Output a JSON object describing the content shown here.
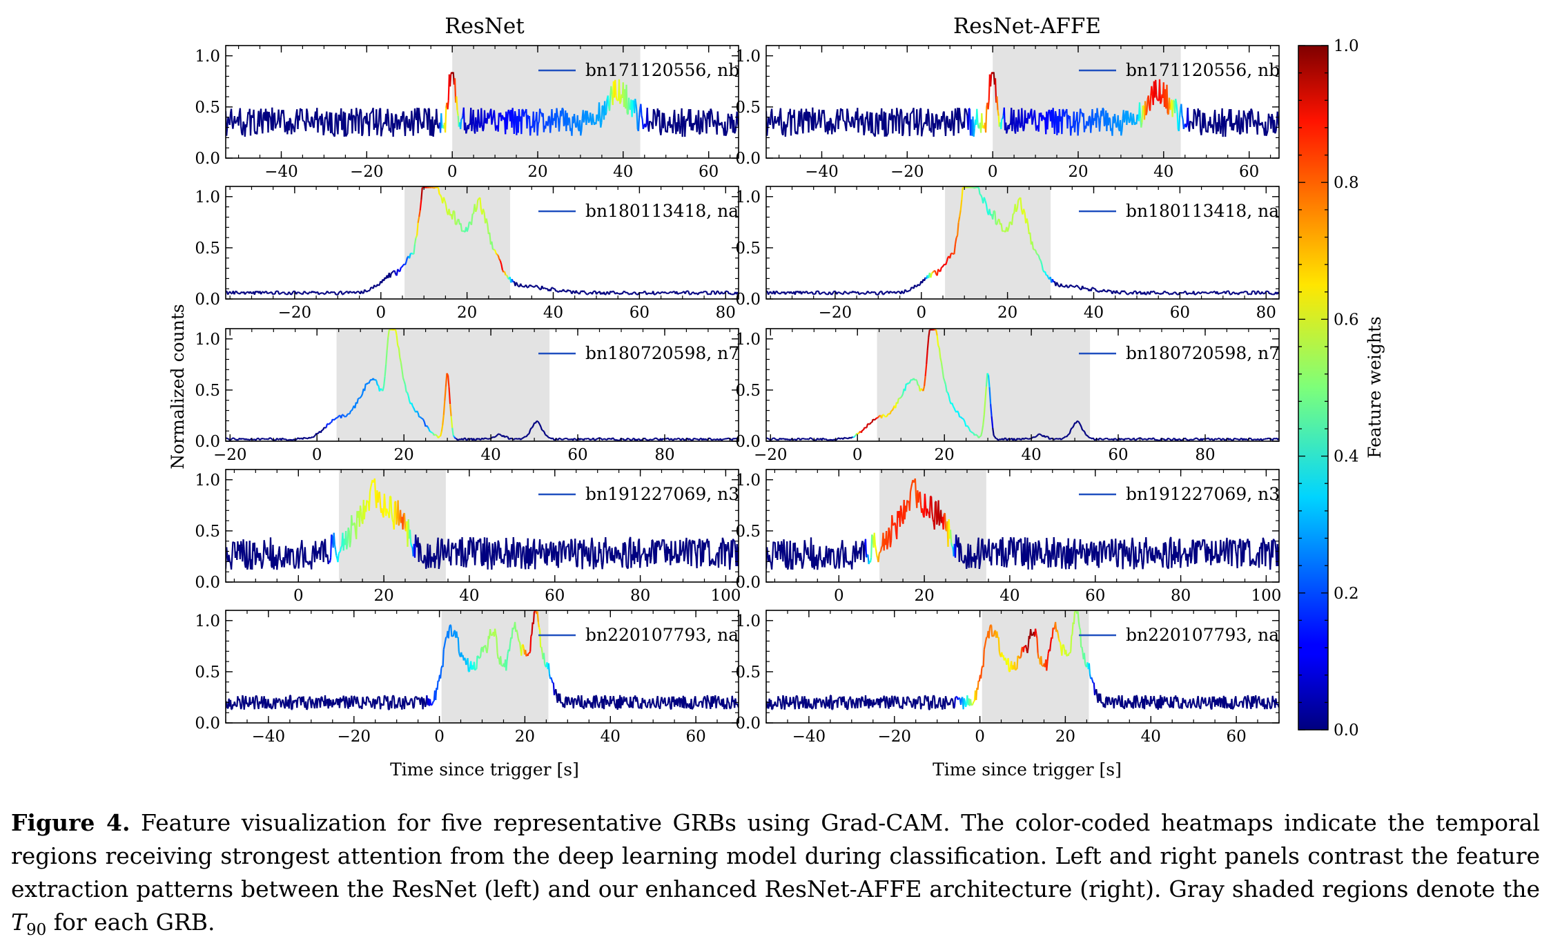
{
  "figure": {
    "left_title": "ResNet",
    "right_title": "ResNet-AFFE",
    "ylabel": "Normalized counts",
    "xlabel": "Time since trigger [s]",
    "colorbar": {
      "label": "Feature weights",
      "range": [
        0.0,
        1.0
      ],
      "ticks": [
        "0.0",
        "0.2",
        "0.4",
        "0.6",
        "0.8",
        "1.0"
      ]
    }
  },
  "caption": {
    "label": "Figure 4.",
    "text_before": "Feature visualization for five representative GRBs using Grad-CAM. The color-coded heatmaps indicate the temporal regions receiving strongest attention from the deep learning model during classification. Left and right panels contrast the feature extraction patterns between the ResNet (left) and our enhanced ResNet-AFFE architecture (right). Gray shaded regions denote the",
    "t_symbol": "T",
    "t_sub": "90",
    "text_after": "for each GRB."
  },
  "chart_data": [
    {
      "type": "line",
      "panel": "ResNet",
      "row": 1,
      "legend": "bn171120556, nb",
      "xlim": [
        -53,
        67
      ],
      "ylim": [
        0,
        1.1
      ],
      "xticks": [
        -40,
        -20,
        0,
        20,
        40,
        60
      ],
      "yticks": [
        0.0,
        0.5,
        1.0
      ],
      "t90": [
        0,
        44
      ],
      "kind": "noisy",
      "baseline": 0.35,
      "noise": 0.09,
      "pulses": [
        [
          0,
          0.62,
          0.7
        ],
        [
          39,
          0.3,
          2.5
        ]
      ],
      "heat": [
        [
          -3,
          0.1
        ],
        [
          -1,
          0.85
        ],
        [
          0.3,
          1.0
        ],
        [
          1.8,
          0.35
        ],
        [
          3,
          0.05
        ],
        [
          36,
          0.3
        ],
        [
          38,
          0.65
        ],
        [
          41,
          0.5
        ],
        [
          44,
          0.2
        ],
        [
          46,
          0.05
        ]
      ]
    },
    {
      "type": "line",
      "panel": "ResNet-AFFE",
      "row": 1,
      "legend": "bn171120556, nb",
      "xlim": [
        -53,
        67
      ],
      "ylim": [
        0,
        1.1
      ],
      "xticks": [
        -40,
        -20,
        0,
        20,
        40,
        60
      ],
      "yticks": [
        0.0,
        0.5,
        1.0
      ],
      "t90": [
        0,
        44
      ],
      "kind": "noisy",
      "baseline": 0.35,
      "noise": 0.09,
      "pulses": [
        [
          0,
          0.62,
          0.7
        ],
        [
          39,
          0.3,
          2.5
        ]
      ],
      "heat": [
        [
          -6,
          0.05
        ],
        [
          -3,
          0.5
        ],
        [
          -0.5,
          0.9
        ],
        [
          0.5,
          1.0
        ],
        [
          2,
          0.4
        ],
        [
          3,
          0.05
        ],
        [
          34,
          0.3
        ],
        [
          36,
          0.8
        ],
        [
          38,
          0.9
        ],
        [
          41,
          0.8
        ],
        [
          43,
          0.4
        ],
        [
          46,
          0.05
        ]
      ]
    },
    {
      "type": "line",
      "panel": "ResNet",
      "row": 2,
      "legend": "bn180113418, na",
      "xlim": [
        -36,
        83
      ],
      "ylim": [
        0,
        1.1
      ],
      "xticks": [
        -20,
        0,
        20,
        40,
        60,
        80
      ],
      "yticks": [
        0.0,
        0.5,
        1.0
      ],
      "t90": [
        5.5,
        30
      ],
      "kind": "smooth",
      "baseline": 0.06,
      "noise": 0.012,
      "pulses": [
        [
          3,
          0.18,
          3
        ],
        [
          7,
          0.25,
          1.5
        ],
        [
          10,
          0.88,
          1.2
        ],
        [
          12.5,
          0.72,
          1.5
        ],
        [
          15,
          0.5,
          2
        ],
        [
          18,
          0.48,
          2
        ],
        [
          22.5,
          0.72,
          1.8
        ],
        [
          26,
          0.32,
          2.5
        ],
        [
          34,
          0.06,
          5
        ]
      ],
      "heat": [
        [
          3,
          0.05
        ],
        [
          6,
          0.2
        ],
        [
          8,
          0.5
        ],
        [
          9.5,
          0.95
        ],
        [
          11,
          0.8
        ],
        [
          14,
          0.6
        ],
        [
          17,
          0.55
        ],
        [
          20,
          0.45
        ],
        [
          23,
          0.6
        ],
        [
          26,
          0.5
        ],
        [
          28,
          0.9
        ],
        [
          29.5,
          0.5
        ],
        [
          31,
          0.1
        ]
      ]
    },
    {
      "type": "line",
      "panel": "ResNet-AFFE",
      "row": 2,
      "legend": "bn180113418, na",
      "xlim": [
        -36,
        83
      ],
      "ylim": [
        0,
        1.1
      ],
      "xticks": [
        -20,
        0,
        20,
        40,
        60,
        80
      ],
      "yticks": [
        0.0,
        0.5,
        1.0
      ],
      "t90": [
        5.5,
        30
      ],
      "kind": "smooth",
      "baseline": 0.06,
      "noise": 0.012,
      "pulses": [
        [
          3,
          0.18,
          3
        ],
        [
          7,
          0.25,
          1.5
        ],
        [
          10,
          0.88,
          1.2
        ],
        [
          12.5,
          0.72,
          1.5
        ],
        [
          15,
          0.5,
          2
        ],
        [
          18,
          0.48,
          2
        ],
        [
          22.5,
          0.72,
          1.8
        ],
        [
          26,
          0.32,
          2.5
        ],
        [
          34,
          0.06,
          5
        ]
      ],
      "heat": [
        [
          1,
          0.2
        ],
        [
          3,
          0.8
        ],
        [
          5,
          0.9
        ],
        [
          8,
          0.8
        ],
        [
          10,
          0.6
        ],
        [
          13,
          0.45
        ],
        [
          15.5,
          0.4
        ],
        [
          18,
          0.55
        ],
        [
          21,
          0.55
        ],
        [
          24,
          0.6
        ],
        [
          27,
          0.5
        ],
        [
          30,
          0.3
        ],
        [
          31,
          0.05
        ]
      ]
    },
    {
      "type": "line",
      "panel": "ResNet",
      "row": 3,
      "legend": "bn180720598, n7",
      "xlim": [
        -21,
        97
      ],
      "ylim": [
        0,
        1.1
      ],
      "xticks": [
        -20,
        0,
        20,
        40,
        60,
        80
      ],
      "yticks": [
        0.0,
        0.5,
        1.0
      ],
      "t90": [
        4.5,
        53.5
      ],
      "kind": "smooth",
      "baseline": 0.02,
      "noise": 0.008,
      "pulses": [
        [
          5,
          0.2,
          3
        ],
        [
          10,
          0.25,
          2
        ],
        [
          12,
          0.3,
          1.5
        ],
        [
          14,
          0.35,
          1.2
        ],
        [
          17,
          0.92,
          1.0
        ],
        [
          18.5,
          0.55,
          1.5
        ],
        [
          21,
          0.25,
          2
        ],
        [
          24,
          0.12,
          2
        ],
        [
          30,
          0.62,
          0.6
        ],
        [
          42,
          0.04,
          1.2
        ],
        [
          50.5,
          0.17,
          1.2
        ]
      ],
      "heat": [
        [
          2,
          0.15
        ],
        [
          8,
          0.25
        ],
        [
          13,
          0.25
        ],
        [
          16,
          0.5
        ],
        [
          17.5,
          0.65
        ],
        [
          19,
          0.55
        ],
        [
          22,
          0.35
        ],
        [
          25,
          0.2
        ],
        [
          27,
          0.5
        ],
        [
          29,
          0.7
        ],
        [
          30.5,
          0.85
        ],
        [
          32,
          0.05
        ]
      ]
    },
    {
      "type": "line",
      "panel": "ResNet-AFFE",
      "row": 3,
      "legend": "bn180720598, n7",
      "xlim": [
        -21,
        97
      ],
      "ylim": [
        0,
        1.1
      ],
      "xticks": [
        -20,
        0,
        20,
        40,
        60,
        80
      ],
      "yticks": [
        0.0,
        0.5,
        1.0
      ],
      "t90": [
        4.5,
        53.5
      ],
      "kind": "smooth",
      "baseline": 0.02,
      "noise": 0.008,
      "pulses": [
        [
          5,
          0.2,
          3
        ],
        [
          10,
          0.25,
          2
        ],
        [
          12,
          0.3,
          1.5
        ],
        [
          14,
          0.35,
          1.2
        ],
        [
          17,
          0.92,
          1.0
        ],
        [
          18.5,
          0.55,
          1.5
        ],
        [
          21,
          0.25,
          2
        ],
        [
          24,
          0.12,
          2
        ],
        [
          30,
          0.62,
          0.6
        ],
        [
          42,
          0.04,
          1.2
        ],
        [
          50.5,
          0.17,
          1.2
        ]
      ],
      "heat": [
        [
          -1,
          0.3
        ],
        [
          1,
          0.9
        ],
        [
          4,
          0.95
        ],
        [
          6,
          0.6
        ],
        [
          8,
          0.7
        ],
        [
          11,
          0.4
        ],
        [
          14,
          0.5
        ],
        [
          16,
          0.9
        ],
        [
          17,
          1.0
        ],
        [
          18.5,
          0.6
        ],
        [
          21,
          0.4
        ],
        [
          24,
          0.35
        ],
        [
          27,
          0.45
        ],
        [
          29.5,
          0.55
        ],
        [
          31,
          0.1
        ]
      ]
    },
    {
      "type": "line",
      "panel": "ResNet",
      "row": 4,
      "legend": "bn191227069, n3",
      "xlim": [
        -17,
        103
      ],
      "ylim": [
        0,
        1.1
      ],
      "xticks": [
        0,
        20,
        40,
        60,
        80,
        100
      ],
      "yticks": [
        0.0,
        0.5,
        1.0
      ],
      "t90": [
        9.5,
        34.5
      ],
      "kind": "noisy",
      "baseline": 0.28,
      "noise": 0.1,
      "pulses": [
        [
          14,
          0.25,
          3
        ],
        [
          18,
          0.45,
          2
        ],
        [
          23,
          0.35,
          2.5
        ]
      ],
      "heat": [
        [
          7,
          0.05
        ],
        [
          9,
          0.35
        ],
        [
          12,
          0.5
        ],
        [
          16,
          0.6
        ],
        [
          19,
          0.65
        ],
        [
          22,
          0.6
        ],
        [
          24.5,
          0.8
        ],
        [
          26,
          0.5
        ],
        [
          27.5,
          0.05
        ]
      ]
    },
    {
      "type": "line",
      "panel": "ResNet-AFFE",
      "row": 4,
      "legend": "bn191227069, n3",
      "xlim": [
        -17,
        103
      ],
      "ylim": [
        0,
        1.1
      ],
      "xticks": [
        0,
        20,
        40,
        60,
        80,
        100
      ],
      "yticks": [
        0.0,
        0.5,
        1.0
      ],
      "t90": [
        9.5,
        34.5
      ],
      "kind": "noisy",
      "baseline": 0.28,
      "noise": 0.1,
      "pulses": [
        [
          14,
          0.25,
          3
        ],
        [
          18,
          0.45,
          2
        ],
        [
          23,
          0.35,
          2.5
        ]
      ],
      "heat": [
        [
          6,
          0.05
        ],
        [
          8,
          0.55
        ],
        [
          10,
          0.8
        ],
        [
          14,
          0.85
        ],
        [
          18,
          0.8
        ],
        [
          21,
          0.9
        ],
        [
          24,
          0.95
        ],
        [
          26,
          0.6
        ],
        [
          27.5,
          0.05
        ]
      ]
    },
    {
      "type": "line",
      "panel": "ResNet",
      "row": 5,
      "legend": "bn220107793, na",
      "xlim": [
        -50,
        70
      ],
      "ylim": [
        0,
        1.1
      ],
      "xticks": [
        -40,
        -20,
        0,
        20,
        40,
        60
      ],
      "yticks": [
        0.0,
        0.5,
        1.0
      ],
      "t90": [
        0.5,
        25.5
      ],
      "kind": "noisy",
      "baseline": 0.2,
      "noise": 0.045,
      "pulses": [
        [
          2,
          0.5,
          1.5
        ],
        [
          4,
          0.38,
          1.5
        ],
        [
          7,
          0.28,
          1.5
        ],
        [
          10,
          0.45,
          1.2
        ],
        [
          12.5,
          0.58,
          1
        ],
        [
          15,
          0.3,
          1.5
        ],
        [
          17.5,
          0.55,
          1
        ],
        [
          20,
          0.45,
          1.5
        ],
        [
          22.5,
          0.65,
          0.8
        ],
        [
          24.5,
          0.4,
          1.5
        ]
      ],
      "heat": [
        [
          -3,
          0.05
        ],
        [
          -1,
          0.2
        ],
        [
          2,
          0.25
        ],
        [
          6,
          0.3
        ],
        [
          10,
          0.5
        ],
        [
          13,
          0.55
        ],
        [
          16,
          0.45
        ],
        [
          19,
          0.55
        ],
        [
          20.5,
          0.8
        ],
        [
          22,
          0.95
        ],
        [
          23.5,
          0.6
        ],
        [
          25.5,
          0.35
        ],
        [
          27,
          0.05
        ]
      ]
    },
    {
      "type": "line",
      "panel": "ResNet-AFFE",
      "row": 5,
      "legend": "bn220107793, na",
      "xlim": [
        -50,
        70
      ],
      "ylim": [
        0,
        1.1
      ],
      "xticks": [
        -40,
        -20,
        0,
        20,
        40,
        60
      ],
      "yticks": [
        0.0,
        0.5,
        1.0
      ],
      "t90": [
        0.5,
        25.5
      ],
      "kind": "noisy",
      "baseline": 0.2,
      "noise": 0.045,
      "pulses": [
        [
          2,
          0.5,
          1.5
        ],
        [
          4,
          0.38,
          1.5
        ],
        [
          7,
          0.28,
          1.5
        ],
        [
          10,
          0.45,
          1.2
        ],
        [
          12.5,
          0.58,
          1
        ],
        [
          15,
          0.3,
          1.5
        ],
        [
          17.5,
          0.55,
          1
        ],
        [
          20,
          0.45,
          1.5
        ],
        [
          22.5,
          0.65,
          0.8
        ],
        [
          24.5,
          0.4,
          1.5
        ]
      ],
      "heat": [
        [
          -6,
          0.05
        ],
        [
          -3,
          0.4
        ],
        [
          0,
          0.8
        ],
        [
          3,
          0.75
        ],
        [
          6,
          0.6
        ],
        [
          9,
          0.7
        ],
        [
          11,
          0.95
        ],
        [
          12.5,
          1.0
        ],
        [
          14,
          0.7
        ],
        [
          16.5,
          0.9
        ],
        [
          19,
          0.6
        ],
        [
          22,
          0.55
        ],
        [
          25,
          0.45
        ],
        [
          27,
          0.05
        ]
      ]
    }
  ]
}
